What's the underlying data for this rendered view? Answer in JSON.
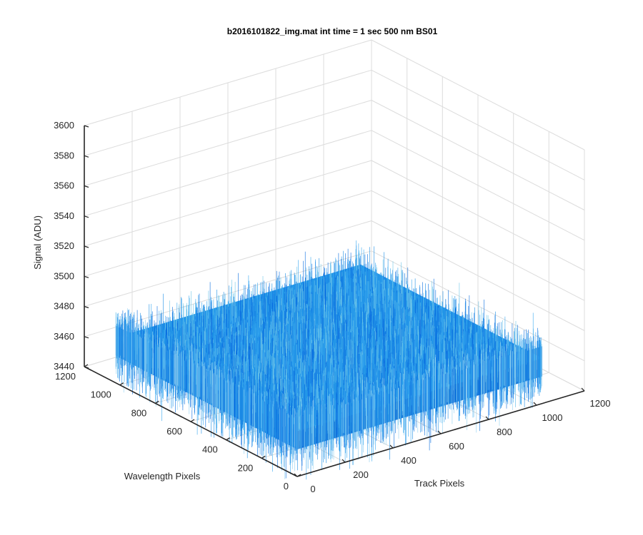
{
  "chart_data": {
    "type": "surface",
    "title": "b2016101822_img.mat int time = 1 sec  500 nm BS01",
    "x_axis": {
      "label": "Track Pixels",
      "range": [
        0,
        1200
      ],
      "ticks": [
        0,
        200,
        400,
        600,
        800,
        1000,
        1200
      ]
    },
    "y_axis": {
      "label": "Wavelength Pixels",
      "range": [
        0,
        1200
      ],
      "ticks": [
        0,
        200,
        400,
        600,
        800,
        1000,
        1200
      ]
    },
    "z_axis": {
      "label": "Signal (ADU)",
      "range": [
        3440,
        3600
      ],
      "ticks": [
        3440,
        3460,
        3480,
        3500,
        3520,
        3540,
        3560,
        3580,
        3600
      ]
    },
    "grid": true,
    "surface": {
      "x_extent": [
        0,
        1024
      ],
      "y_extent": [
        0,
        1024
      ],
      "mean_signal": 3470,
      "noise_range": [
        3440,
        3540
      ],
      "colors": [
        "#0a6ee0",
        "#1e90e6",
        "#3aa8f0",
        "#6fc6e8"
      ]
    }
  }
}
